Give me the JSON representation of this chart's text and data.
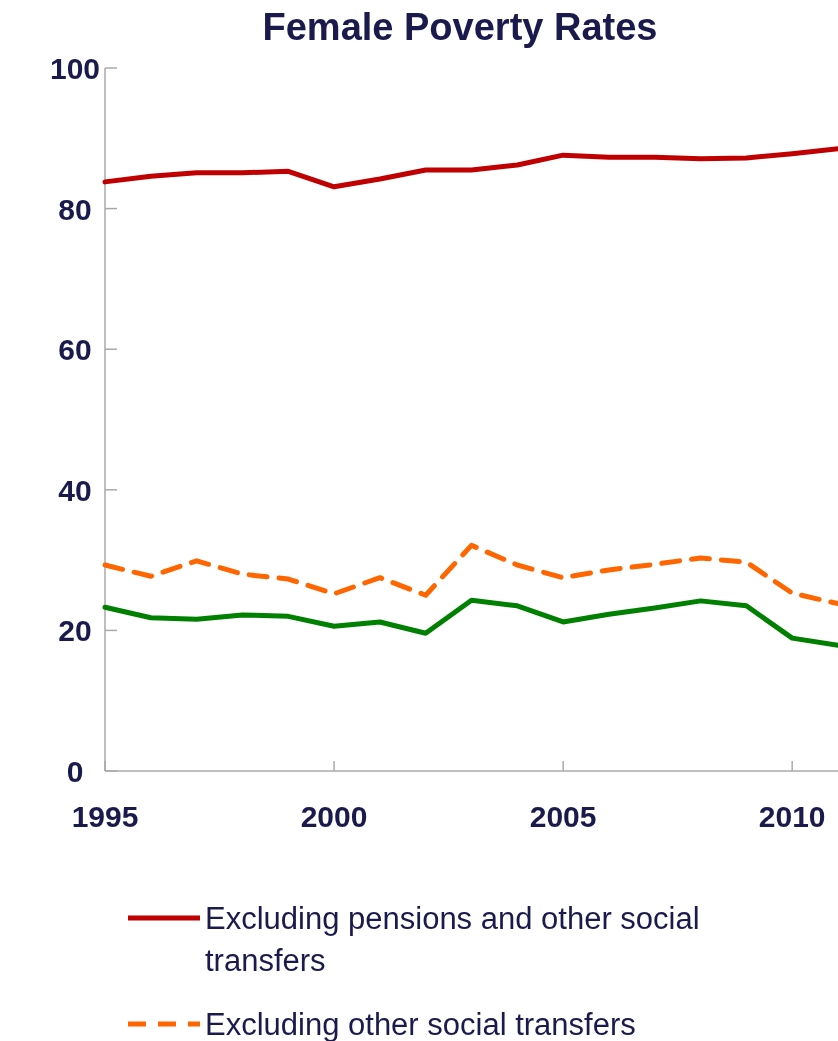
{
  "chart_data": {
    "type": "line",
    "title": "Female Poverty Rates",
    "x": [
      1995,
      1996,
      1997,
      1998,
      1999,
      2000,
      2001,
      2002,
      2003,
      2004,
      2005,
      2006,
      2007,
      2008,
      2009,
      2010,
      2011
    ],
    "xlim": [
      1995,
      2011
    ],
    "xticks": [
      1995,
      2000,
      2005,
      2010
    ],
    "ylim": [
      0,
      100
    ],
    "yticks": [
      0,
      20,
      40,
      60,
      80,
      100
    ],
    "grid": false,
    "legend": "bottom",
    "series": [
      {
        "name": "Excluding pensions and other social transfers",
        "color": "#c00000",
        "line_style": "solid",
        "values": [
          83.8,
          84.6,
          85.1,
          85.1,
          85.3,
          83.1,
          84.2,
          85.5,
          85.5,
          86.2,
          87.6,
          87.3,
          87.3,
          87.1,
          87.2,
          87.8,
          88.5
        ]
      },
      {
        "name": "Excluding other social transfers",
        "color": "#ff6600",
        "line_style": "dashed",
        "values": [
          29.3,
          27.7,
          29.9,
          28.0,
          27.3,
          25.2,
          27.5,
          25.0,
          32.1,
          29.3,
          27.5,
          28.6,
          29.4,
          30.3,
          29.7,
          25.3,
          23.8
        ]
      },
      {
        "color": "#008000",
        "line_style": "solid",
        "values": [
          23.3,
          21.8,
          21.6,
          22.2,
          22.0,
          20.6,
          21.2,
          19.6,
          24.3,
          23.5,
          21.2,
          22.3,
          23.2,
          24.2,
          23.5,
          18.9,
          17.9
        ]
      }
    ]
  }
}
